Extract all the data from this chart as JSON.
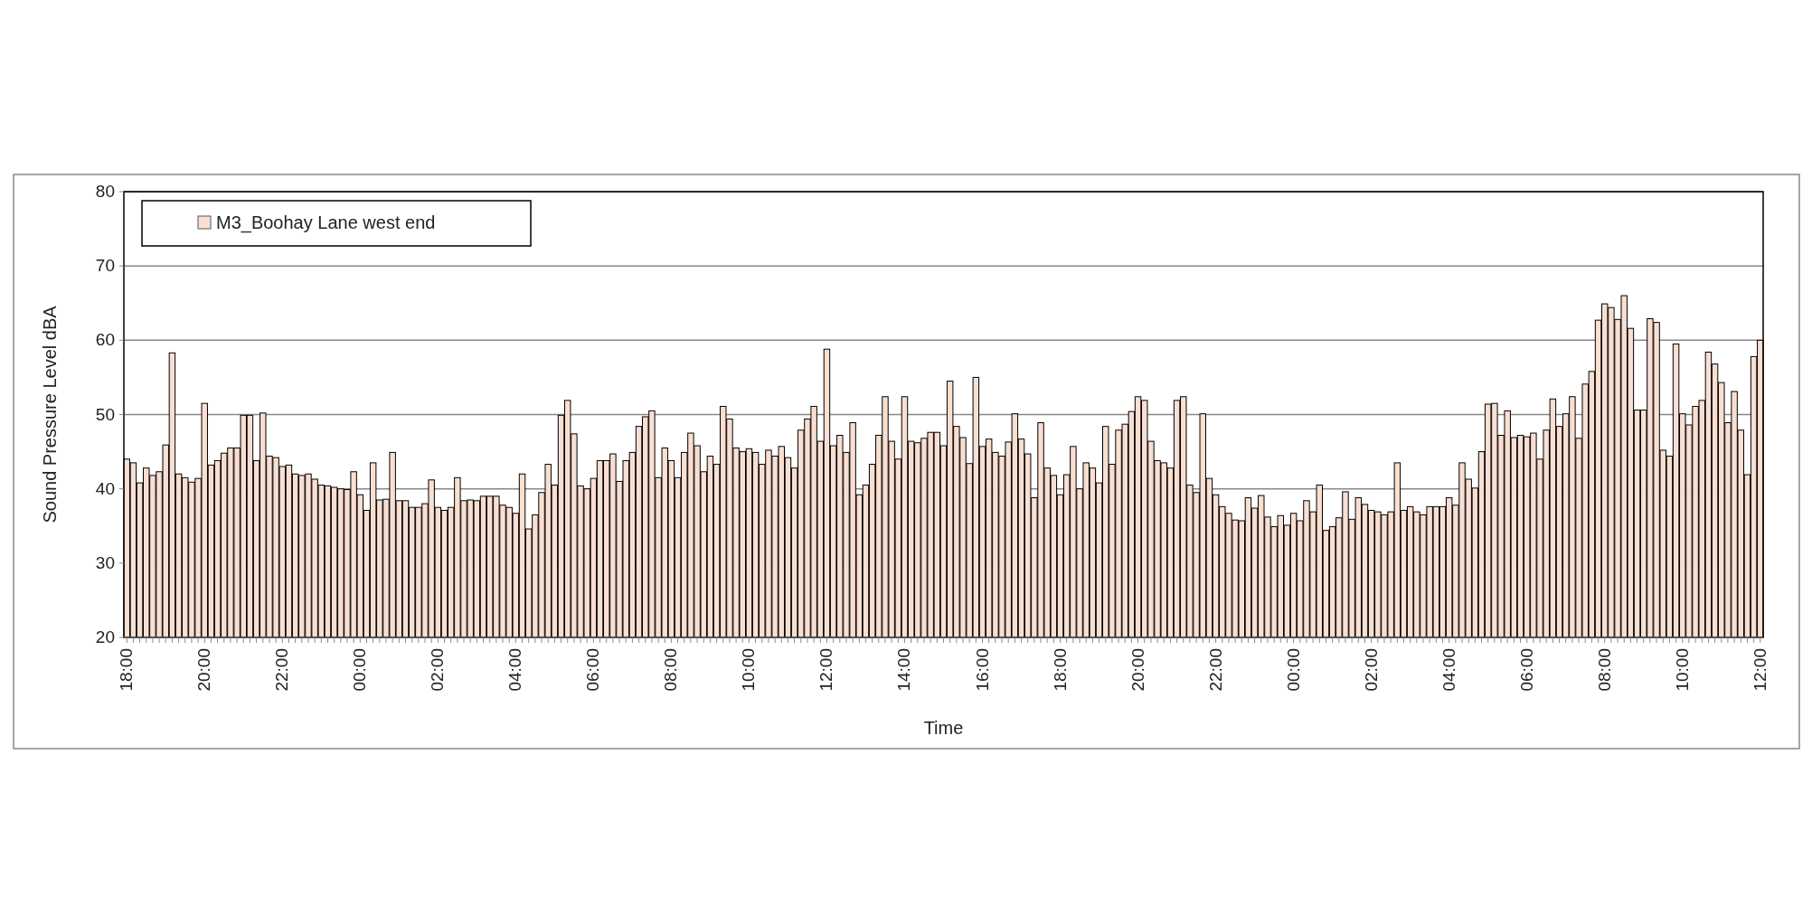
{
  "chart_data": {
    "type": "bar",
    "xlabel": "Time",
    "ylabel": "Sound Pressure Level dBA",
    "categories": [
      "18:00",
      null,
      null,
      null,
      null,
      null,
      null,
      null,
      null,
      null,
      null,
      null,
      "20:00",
      null,
      null,
      null,
      null,
      null,
      null,
      null,
      null,
      null,
      null,
      null,
      "22:00",
      null,
      null,
      null,
      null,
      null,
      null,
      null,
      null,
      null,
      null,
      null,
      "00:00",
      null,
      null,
      null,
      null,
      null,
      null,
      null,
      null,
      null,
      null,
      null,
      "02:00",
      null,
      null,
      null,
      null,
      null,
      null,
      null,
      null,
      null,
      null,
      null,
      "04:00",
      null,
      null,
      null,
      null,
      null,
      null,
      null,
      null,
      null,
      null,
      null,
      "06:00",
      null,
      null,
      null,
      null,
      null,
      null,
      null,
      null,
      null,
      null,
      null,
      "08:00",
      null,
      null,
      null,
      null,
      null,
      null,
      null,
      null,
      null,
      null,
      null,
      "10:00",
      null,
      null,
      null,
      null,
      null,
      null,
      null,
      null,
      null,
      null,
      null,
      "12:00",
      null,
      null,
      null,
      null,
      null,
      null,
      null,
      null,
      null,
      null,
      null,
      "14:00",
      null,
      null,
      null,
      null,
      null,
      null,
      null,
      null,
      null,
      null,
      null,
      "16:00",
      null,
      null,
      null,
      null,
      null,
      null,
      null,
      null,
      null,
      null,
      null,
      "18:00",
      null,
      null,
      null,
      null,
      null,
      null,
      null,
      null,
      null,
      null,
      null,
      "20:00",
      null,
      null,
      null,
      null,
      null,
      null,
      null,
      null,
      null,
      null,
      null,
      "22:00",
      null,
      null,
      null,
      null,
      null,
      null,
      null,
      null,
      null,
      null,
      null,
      "00:00",
      null,
      null,
      null,
      null,
      null,
      null,
      null,
      null,
      null,
      null,
      null,
      "02:00",
      null,
      null,
      null,
      null,
      null,
      null,
      null,
      null,
      null,
      null,
      null,
      "04:00",
      null,
      null,
      null,
      null,
      null,
      null,
      null,
      null,
      null,
      null,
      null,
      "06:00",
      null,
      null,
      null,
      null,
      null,
      null,
      null,
      null,
      null,
      null,
      null,
      "08:00",
      null,
      null,
      null,
      null,
      null,
      null,
      null,
      null,
      null,
      null,
      null,
      "10:00",
      null,
      null,
      null,
      null,
      null,
      null,
      null,
      null,
      null,
      null,
      null,
      "12:00"
    ],
    "series": [
      {
        "name": "M3_Boohay Lane west end",
        "color": "#f9dfd2",
        "values": [
          44,
          43.5,
          40.8,
          42.8,
          41.8,
          42.3,
          45.9,
          58.3,
          42,
          41.5,
          40.9,
          41.4,
          51.5,
          43.2,
          43.8,
          44.8,
          45.5,
          45.5,
          49.9,
          49.9,
          43.8,
          50.2,
          44.4,
          44.2,
          43,
          43.2,
          42,
          41.8,
          42,
          41.3,
          40.5,
          40.4,
          40.2,
          40,
          39.9,
          42.3,
          39.2,
          37.1,
          43.5,
          38.5,
          38.6,
          44.9,
          38.4,
          38.4,
          37.5,
          37.5,
          38,
          41.2,
          37.5,
          37.1,
          37.5,
          41.5,
          38.4,
          38.5,
          38.4,
          39,
          39,
          39,
          37.8,
          37.5,
          36.7,
          42,
          34.6,
          36.5,
          39.5,
          43.3,
          40.5,
          49.9,
          51.9,
          47.4,
          40.4,
          40,
          41.4,
          43.8,
          43.8,
          44.7,
          41,
          43.8,
          44.9,
          48.4,
          49.7,
          50.5,
          41.5,
          45.5,
          43.8,
          41.5,
          44.9,
          47.5,
          45.8,
          42.3,
          44.4,
          43.3,
          51.1,
          49.4,
          45.5,
          45,
          45.4,
          44.9,
          43.3,
          45.2,
          44.4,
          45.7,
          44.2,
          42.8,
          47.9,
          49.4,
          51.1,
          46.4,
          58.8,
          45.8,
          47.2,
          44.9,
          48.9,
          39.2,
          40.5,
          43.3,
          47.2,
          52.4,
          46.4,
          44,
          52.4,
          46.4,
          46.2,
          46.8,
          47.6,
          47.6,
          45.8,
          54.5,
          48.4,
          46.9,
          43.4,
          55,
          45.7,
          46.7,
          44.9,
          44.4,
          46.3,
          50.1,
          46.7,
          44.7,
          38.8,
          48.9,
          42.8,
          41.8,
          39.2,
          41.9,
          45.7,
          40,
          43.5,
          42.8,
          40.8,
          48.4,
          43.3,
          47.9,
          48.7,
          50.4,
          52.4,
          51.9,
          46.4,
          43.8,
          43.5,
          42.8,
          51.9,
          52.4,
          40.5,
          39.5,
          50.1,
          41.4,
          39.2,
          37.6,
          36.7,
          35.8,
          35.7,
          38.8,
          37.4,
          39.1,
          36.2,
          34.9,
          36.4,
          35.1,
          36.7,
          35.7,
          38.4,
          36.9,
          40.5,
          34.4,
          34.9,
          36.1,
          39.6,
          35.9,
          38.8,
          37.9,
          37.1,
          36.9,
          36.5,
          36.9,
          43.5,
          37.1,
          37.6,
          36.9,
          36.5,
          37.6,
          37.6,
          37.6,
          38.8,
          37.8,
          43.5,
          41.3,
          40.1,
          45,
          51.4,
          51.5,
          47.2,
          50.5,
          46.9,
          47.2,
          47,
          47.5,
          44,
          47.9,
          52.1,
          48.4,
          50.1,
          52.4,
          46.8,
          54.1,
          55.8,
          62.7,
          64.9,
          64.4,
          62.8,
          66,
          61.6,
          50.6,
          50.6,
          62.9,
          62.4,
          45.2,
          44.4,
          59.5,
          50.1,
          48.6,
          51.1,
          51.9,
          58.4,
          56.8,
          54.3,
          48.9,
          53.1,
          47.9,
          41.9,
          57.8,
          60
        ]
      }
    ],
    "ylim": [
      20,
      80
    ],
    "yticks": [
      20,
      30,
      40,
      50,
      60,
      70,
      80
    ],
    "grid": "y",
    "legend": "top left"
  }
}
